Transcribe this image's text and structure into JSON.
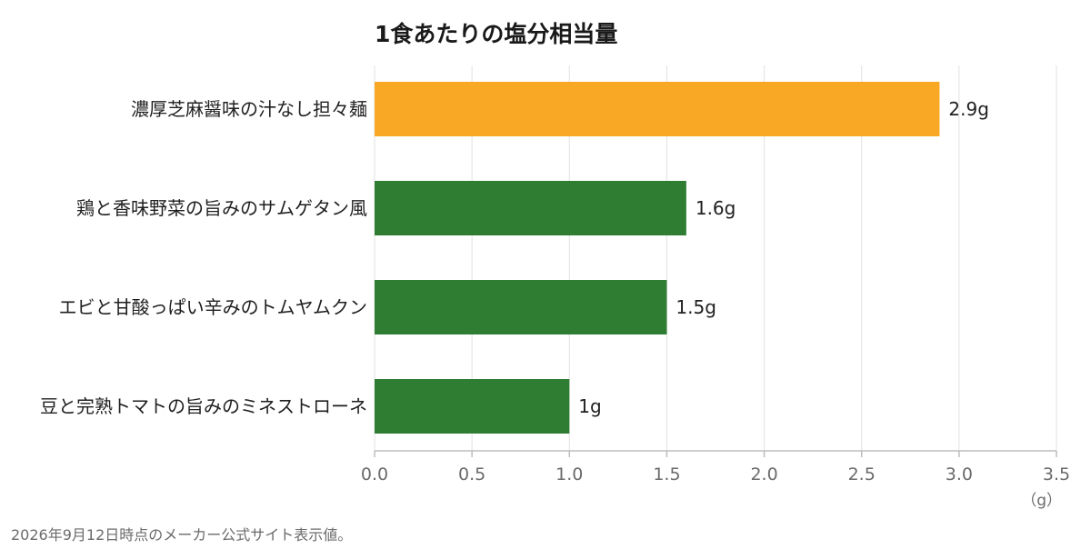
{
  "chart_data": {
    "type": "bar",
    "orientation": "horizontal",
    "title": "1食あたりの塩分相当量",
    "categories": [
      "濃厚芝麻醤味の汁なし担々麺",
      "鶏と香味野菜の旨みのサムゲタン風",
      "エビと甘酸っぱい辛みのトムヤムクン",
      "豆と完熟トマトの旨みのミネストローネ"
    ],
    "values": [
      2.9,
      1.6,
      1.5,
      1.0
    ],
    "value_labels": [
      "2.9g",
      "1.6g",
      "1.5g",
      "1g"
    ],
    "bar_colors": [
      "#F9A825",
      "#2E7D32",
      "#2E7D32",
      "#2E7D32"
    ],
    "xlim": [
      0,
      3.5
    ],
    "xticks": [
      0.0,
      0.5,
      1.0,
      1.5,
      2.0,
      2.5,
      3.0,
      3.5
    ],
    "xtick_labels": [
      "0.0",
      "0.5",
      "1.0",
      "1.5",
      "2.0",
      "2.5",
      "3.0",
      "3.5"
    ],
    "unit": "（g）",
    "grid": true
  },
  "footnote": "2026年9月12日時点のメーカー公式サイト表示値。"
}
